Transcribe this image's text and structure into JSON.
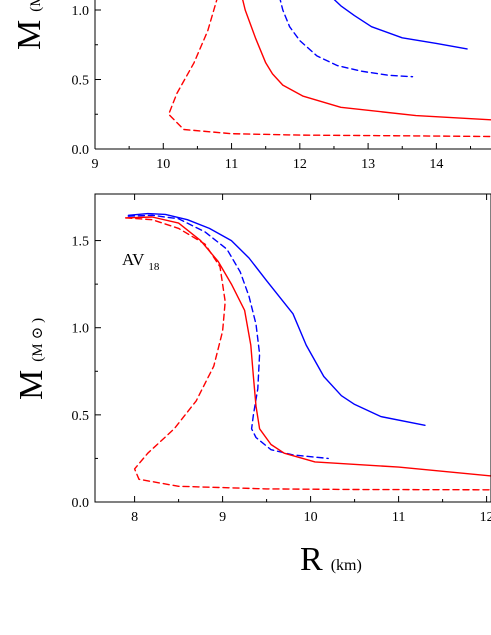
{
  "chart_data": [
    {
      "type": "line",
      "panel": "top",
      "xlim": [
        9,
        14.8
      ],
      "ylim": [
        0,
        1.0
      ],
      "x_ticks": [
        "9",
        "10",
        "11",
        "12",
        "13",
        "14"
      ],
      "y_ticks": [
        "0.0",
        "0.5",
        "1.0"
      ],
      "ylabel": "M",
      "ylabel_sub": "(M",
      "series": [
        {
          "color": "#0000ff",
          "dash": "solid",
          "points": [
            [
              12.3,
              1.2
            ],
            [
              12.45,
              1.1
            ],
            [
              12.6,
              1.03
            ],
            [
              12.8,
              0.96
            ],
            [
              13.05,
              0.88
            ],
            [
              13.5,
              0.8
            ],
            [
              14.0,
              0.76
            ],
            [
              14.45,
              0.72
            ]
          ]
        },
        {
          "color": "#0000ff",
          "dash": "dashed",
          "points": [
            [
              11.7,
              1.1
            ],
            [
              11.75,
              1.0
            ],
            [
              11.85,
              0.88
            ],
            [
              12.0,
              0.78
            ],
            [
              12.25,
              0.67
            ],
            [
              12.55,
              0.6
            ],
            [
              12.9,
              0.56
            ],
            [
              13.3,
              0.53
            ],
            [
              13.65,
              0.52
            ]
          ]
        },
        {
          "color": "#ff0000",
          "dash": "solid",
          "points": [
            [
              11.1,
              1.2
            ],
            [
              11.2,
              1.0
            ],
            [
              11.35,
              0.8
            ],
            [
              11.5,
              0.62
            ],
            [
              11.6,
              0.54
            ],
            [
              11.75,
              0.46
            ],
            [
              12.05,
              0.38
            ],
            [
              12.6,
              0.3
            ],
            [
              13.7,
              0.24
            ],
            [
              14.8,
              0.21
            ]
          ]
        },
        {
          "color": "#ff0000",
          "dash": "dashed",
          "points": [
            [
              10.8,
              1.1
            ],
            [
              10.65,
              0.85
            ],
            [
              10.45,
              0.62
            ],
            [
              10.2,
              0.4
            ],
            [
              10.08,
              0.25
            ],
            [
              10.3,
              0.14
            ],
            [
              11.0,
              0.11
            ],
            [
              12.0,
              0.1
            ],
            [
              13.5,
              0.095
            ],
            [
              14.8,
              0.09
            ]
          ]
        }
      ]
    },
    {
      "type": "line",
      "panel": "bottom",
      "xlim": [
        7.55,
        12.05
      ],
      "ylim": [
        0,
        1.75
      ],
      "x_ticks": [
        "8",
        "9",
        "10",
        "11",
        "12"
      ],
      "y_ticks": [
        "0.0",
        "0.5",
        "1.0",
        "1.5"
      ],
      "ylabel": "M",
      "ylabel_sub": "(M",
      "ylabel_sun": "⊙",
      "xlabel": "R",
      "xlabel_sub": "(km)",
      "annotation": "AV",
      "annotation_sub": "18",
      "series": [
        {
          "color": "#0000ff",
          "dash": "solid",
          "points": [
            [
              7.93,
              1.645
            ],
            [
              8.15,
              1.655
            ],
            [
              8.35,
              1.65
            ],
            [
              8.6,
              1.62
            ],
            [
              8.85,
              1.57
            ],
            [
              9.1,
              1.5
            ],
            [
              9.3,
              1.4
            ],
            [
              9.5,
              1.27
            ],
            [
              9.8,
              1.08
            ],
            [
              9.95,
              0.9
            ],
            [
              10.15,
              0.72
            ],
            [
              10.35,
              0.61
            ],
            [
              10.5,
              0.56
            ],
            [
              10.8,
              0.49
            ],
            [
              11.3,
              0.44
            ]
          ]
        },
        {
          "color": "#0000ff",
          "dash": "dashed",
          "points": [
            [
              7.93,
              1.64
            ],
            [
              8.2,
              1.645
            ],
            [
              8.5,
              1.625
            ],
            [
              8.8,
              1.55
            ],
            [
              9.05,
              1.45
            ],
            [
              9.2,
              1.32
            ],
            [
              9.3,
              1.18
            ],
            [
              9.38,
              1.02
            ],
            [
              9.42,
              0.85
            ],
            [
              9.4,
              0.65
            ],
            [
              9.35,
              0.5
            ],
            [
              9.33,
              0.42
            ],
            [
              9.38,
              0.37
            ],
            [
              9.55,
              0.3
            ],
            [
              9.8,
              0.27
            ],
            [
              10.2,
              0.25
            ]
          ]
        },
        {
          "color": "#ff0000",
          "dash": "solid",
          "points": [
            [
              7.9,
              1.63
            ],
            [
              8.2,
              1.635
            ],
            [
              8.5,
              1.6
            ],
            [
              8.75,
              1.5
            ],
            [
              8.95,
              1.38
            ],
            [
              9.1,
              1.25
            ],
            [
              9.25,
              1.1
            ],
            [
              9.32,
              0.9
            ],
            [
              9.35,
              0.72
            ],
            [
              9.38,
              0.55
            ],
            [
              9.42,
              0.42
            ],
            [
              9.55,
              0.33
            ],
            [
              9.7,
              0.28
            ],
            [
              10.05,
              0.23
            ],
            [
              11.0,
              0.2
            ],
            [
              12.05,
              0.15
            ]
          ]
        },
        {
          "color": "#ff0000",
          "dash": "dashed",
          "points": [
            [
              7.9,
              1.63
            ],
            [
              8.2,
              1.62
            ],
            [
              8.5,
              1.57
            ],
            [
              8.8,
              1.48
            ],
            [
              8.97,
              1.35
            ],
            [
              9.03,
              1.15
            ],
            [
              9.0,
              0.98
            ],
            [
              8.9,
              0.78
            ],
            [
              8.7,
              0.58
            ],
            [
              8.45,
              0.42
            ],
            [
              8.15,
              0.28
            ],
            [
              8.0,
              0.19
            ],
            [
              8.05,
              0.13
            ],
            [
              8.5,
              0.09
            ],
            [
              9.5,
              0.075
            ],
            [
              10.5,
              0.072
            ],
            [
              12.05,
              0.07
            ]
          ]
        }
      ]
    }
  ]
}
